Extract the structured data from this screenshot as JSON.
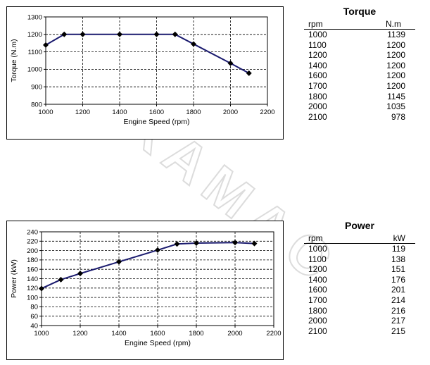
{
  "torque_table": {
    "title": "Torque",
    "col1": "rpm",
    "col2": "N.m",
    "rows": [
      [
        "1000",
        "1139"
      ],
      [
        "1100",
        "1200"
      ],
      [
        "1200",
        "1200"
      ],
      [
        "1400",
        "1200"
      ],
      [
        "1600",
        "1200"
      ],
      [
        "1700",
        "1200"
      ],
      [
        "1800",
        "1145"
      ],
      [
        "2000",
        "1035"
      ],
      [
        "2100",
        "978"
      ]
    ]
  },
  "power_table": {
    "title": "Power",
    "col1": "rpm",
    "col2": "kW",
    "rows": [
      [
        "1000",
        "119"
      ],
      [
        "1100",
        "138"
      ],
      [
        "1200",
        "151"
      ],
      [
        "1400",
        "176"
      ],
      [
        "1600",
        "201"
      ],
      [
        "1700",
        "214"
      ],
      [
        "1800",
        "216"
      ],
      [
        "2000",
        "217"
      ],
      [
        "2100",
        "215"
      ]
    ]
  },
  "chart_data": [
    {
      "type": "line",
      "xlabel": "Engine Speed (rpm)",
      "ylabel": "Torque (N.m)",
      "xlim": [
        1000,
        2200
      ],
      "ylim": [
        800,
        1300
      ],
      "xticks": [
        1000,
        1200,
        1400,
        1600,
        1800,
        2000,
        2200
      ],
      "yticks": [
        800,
        900,
        1000,
        1100,
        1200,
        1300
      ],
      "grid": true,
      "line_color": "#1a1a6e",
      "x": [
        1000,
        1100,
        1200,
        1400,
        1600,
        1700,
        1800,
        2000,
        2100
      ],
      "y": [
        1139,
        1200,
        1200,
        1200,
        1200,
        1200,
        1145,
        1035,
        978
      ]
    },
    {
      "type": "line",
      "xlabel": "Engine Speed (rpm)",
      "ylabel": "Power (kW)",
      "xlim": [
        1000,
        2200
      ],
      "ylim": [
        40,
        240
      ],
      "xticks": [
        1000,
        1200,
        1400,
        1600,
        1800,
        2000,
        2200
      ],
      "yticks": [
        40,
        60,
        80,
        100,
        120,
        140,
        160,
        180,
        200,
        220,
        240
      ],
      "grid": true,
      "line_color": "#1a1a6e",
      "x": [
        1000,
        1100,
        1200,
        1400,
        1600,
        1700,
        1800,
        2000,
        2100
      ],
      "y": [
        119,
        138,
        151,
        176,
        201,
        214,
        216,
        217,
        215
      ]
    }
  ],
  "watermark": {
    "text": "DURAMAC",
    "color": "#e2e2e2"
  }
}
